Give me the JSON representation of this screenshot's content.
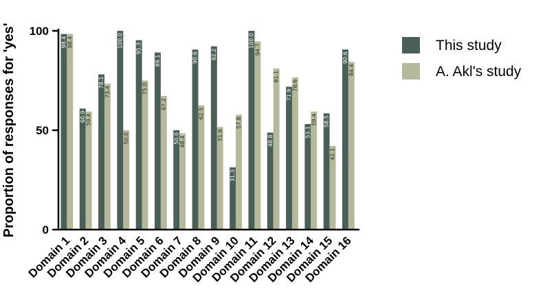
{
  "chart_data": {
    "type": "bar",
    "ylabel": "Proportion of responses for 'yes'",
    "ylim": [
      0,
      100
    ],
    "yticks": [
      0,
      50,
      100
    ],
    "grid": false,
    "legend_position": "top-right",
    "categories": [
      "Domain 1",
      "Domain 2",
      "Domain 3",
      "Domain 4",
      "Domain 5",
      "Domain 6",
      "Domain 7",
      "Domain 8",
      "Domain 9",
      "Domain 10",
      "Domain 11",
      "Domain 12",
      "Domain 13",
      "Domain 14",
      "Domain 15",
      "Domain 16"
    ],
    "series": [
      {
        "name": "This study",
        "color": "#4a5f55",
        "label_color": "#ffffff",
        "values": [
          98.4,
          60.9,
          78.1,
          100.0,
          95.3,
          89.1,
          50.0,
          90.6,
          92.2,
          31.3,
          100.0,
          48.8,
          71.9,
          53.1,
          58.5,
          90.6
        ],
        "labels": [
          "98.4",
          "60.9",
          "78.1",
          "100.0",
          "95.3",
          "89.1",
          "50.0",
          "90.6",
          "92.2",
          "31.3",
          "100.0",
          "48.8",
          "71.9",
          "53.1",
          "58.5",
          "90.6"
        ]
      },
      {
        "name": "A. Akl's study",
        "color": "#b5b89b",
        "label_color": "#1e2a24",
        "values": [
          98.4,
          59.4,
          73.4,
          50.0,
          75.0,
          67.2,
          48.4,
          62.5,
          51.6,
          57.8,
          94.7,
          81.1,
          76.6,
          59.4,
          42.1,
          84.4
        ],
        "labels": [
          "98.4",
          "59.4",
          "73.4",
          "50.0",
          "75.0",
          "67.2",
          "48.4",
          "62.5",
          "51.6",
          "57.8",
          "94.7",
          "81.1",
          "76.6",
          "59.4",
          "42.1",
          "84.4"
        ]
      }
    ]
  }
}
